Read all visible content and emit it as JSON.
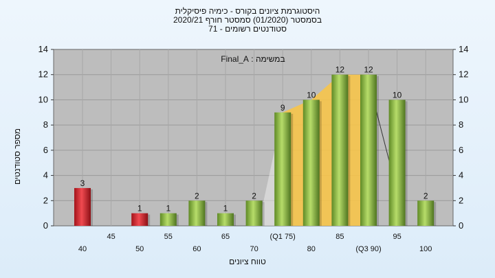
{
  "chart_data": {
    "type": "bar",
    "title": "היסטוגרמת ציונים בקורס - כימיה פיסיקלית",
    "subtitle": "בסמסטר  (01/2020)  סמסטר חורף 2020/21",
    "subtitle2": "סטודנטים רשומים - 71",
    "annotation": "במשימה : Final_A",
    "ylabel": "מספר סטודנטים",
    "xlabel": "טווח ציונים",
    "ylim": [
      0,
      14
    ],
    "yticks": [
      0,
      2,
      4,
      6,
      8,
      10,
      12,
      14
    ],
    "grid": true,
    "categories": [
      "40",
      "45",
      "50",
      "55",
      "60",
      "65",
      "70",
      "(Q1 75)",
      "80",
      "85",
      "(Q3 90)",
      "95",
      "100"
    ],
    "values": [
      3,
      0,
      1,
      1,
      2,
      1,
      2,
      9,
      10,
      12,
      12,
      10,
      2
    ],
    "value_labels": [
      "3",
      "",
      "1",
      "1",
      "2",
      "1",
      "2",
      "9",
      "10",
      "12",
      "12",
      "10",
      "2"
    ],
    "colors": {
      "fail": "#e8323a",
      "pass": "#8fc24a",
      "quartile_band": "#f6c44a",
      "plot_bg": "#bdbdbd"
    },
    "bar_color_keys": [
      "fail",
      "fail",
      "fail",
      "pass",
      "pass",
      "pass",
      "pass",
      "pass",
      "pass",
      "pass",
      "pass",
      "pass",
      "pass"
    ]
  }
}
